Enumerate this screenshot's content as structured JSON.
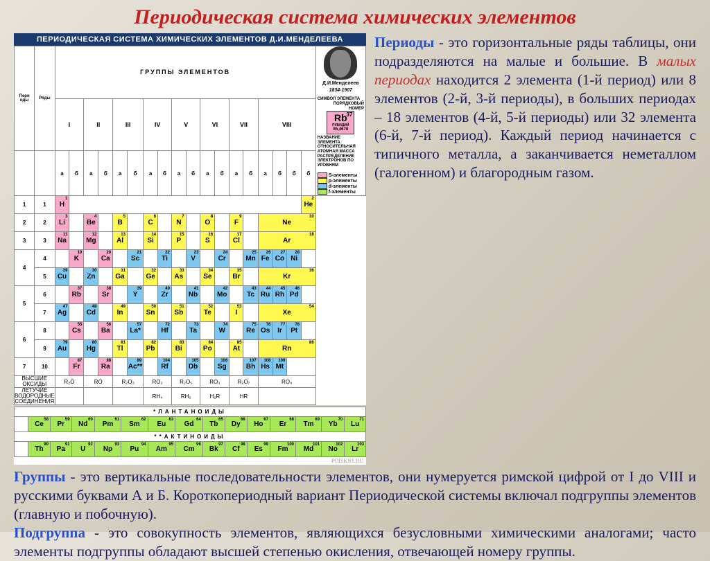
{
  "title": "Периодическая система химических элементов",
  "table": {
    "header": "ПЕРИОДИЧЕСКАЯ СИСТЕМА ХИМИЧЕСКИХ ЭЛЕМЕНТОВ Д.И.МЕНДЕЛЕЕВА",
    "groups_label": "ГРУППЫ ЭЛЕМЕНТОВ",
    "period_label": "Пери оды",
    "row_label": "Ряды",
    "groups": [
      "I",
      "II",
      "III",
      "IV",
      "V",
      "VI",
      "VII",
      "VIII"
    ],
    "subgroups": [
      "а",
      "б",
      "а",
      "б",
      "а",
      "б",
      "а",
      "б",
      "а",
      "б",
      "а",
      "б",
      "а",
      "б",
      "а",
      "б",
      "б",
      "б"
    ],
    "portrait": {
      "name": "Д.И.Менделеев",
      "years": "1834-1907"
    },
    "example": {
      "symbol": "Rb",
      "num": "37",
      "name": "РУБИДИЙ",
      "mass": "85,4678",
      "lbl_sym": "СИМВОЛ ЭЛЕМЕНТА",
      "lbl_num": "ПОРЯДКОВЫЙ НОМЕР",
      "lbl_name": "НАЗВАНИЕ ЭЛЕМЕНТА",
      "lbl_mass": "ОТНОСИТЕЛЬНАЯ АТОМНАЯ МАССА",
      "lbl_dist": "РАСПРЕДЕЛЕНИЕ ЭЛЕКТРОНОВ ПО УРОВНЯМ"
    },
    "legend": {
      "s": "S-элементы",
      "p": "p-элементы",
      "d": "d-элементы",
      "f": "f-элементы"
    },
    "rows": [
      {
        "period": "1",
        "row": "1",
        "cells": [
          {
            "s": "H",
            "n": "1",
            "c": "c-pink",
            "span": 1
          },
          {
            "c": "c-white",
            "span": 16
          },
          {
            "s": "He",
            "n": "2",
            "c": "c-yellow",
            "span": 1
          }
        ]
      },
      {
        "period": "2",
        "row": "2",
        "cells": [
          {
            "s": "Li",
            "n": "3",
            "c": "c-pink"
          },
          {
            "c": "c-white"
          },
          {
            "s": "Be",
            "n": "4",
            "c": "c-pink"
          },
          {
            "c": "c-white"
          },
          {
            "s": "B",
            "n": "5",
            "c": "c-yellow"
          },
          {
            "c": "c-white"
          },
          {
            "s": "C",
            "n": "6",
            "c": "c-yellow"
          },
          {
            "c": "c-white"
          },
          {
            "s": "N",
            "n": "7",
            "c": "c-yellow"
          },
          {
            "c": "c-white"
          },
          {
            "s": "O",
            "n": "8",
            "c": "c-yellow"
          },
          {
            "c": "c-white"
          },
          {
            "s": "F",
            "n": "9",
            "c": "c-yellow"
          },
          {
            "c": "c-white"
          },
          {
            "s": "Ne",
            "n": "10",
            "c": "c-yellow",
            "span": 4
          }
        ]
      },
      {
        "period": "3",
        "row": "3",
        "cells": [
          {
            "s": "Na",
            "n": "11",
            "c": "c-pink"
          },
          {
            "c": "c-white"
          },
          {
            "s": "Mg",
            "n": "12",
            "c": "c-pink"
          },
          {
            "c": "c-white"
          },
          {
            "s": "Al",
            "n": "13",
            "c": "c-yellow"
          },
          {
            "c": "c-white"
          },
          {
            "s": "Si",
            "n": "14",
            "c": "c-yellow"
          },
          {
            "c": "c-white"
          },
          {
            "s": "P",
            "n": "15",
            "c": "c-yellow"
          },
          {
            "c": "c-white"
          },
          {
            "s": "S",
            "n": "16",
            "c": "c-yellow"
          },
          {
            "c": "c-white"
          },
          {
            "s": "Cl",
            "n": "17",
            "c": "c-yellow"
          },
          {
            "c": "c-white"
          },
          {
            "s": "Ar",
            "n": "18",
            "c": "c-yellow",
            "span": 4
          }
        ]
      },
      {
        "period": "4",
        "row": "4",
        "cells": [
          {
            "c": "c-white"
          },
          {
            "s": "K",
            "n": "19",
            "c": "c-pink"
          },
          {
            "c": "c-white"
          },
          {
            "s": "Ca",
            "n": "20",
            "c": "c-pink"
          },
          {
            "c": "c-white"
          },
          {
            "s": "Sc",
            "n": "21",
            "c": "c-blue"
          },
          {
            "c": "c-white"
          },
          {
            "s": "Ti",
            "n": "22",
            "c": "c-blue"
          },
          {
            "c": "c-white"
          },
          {
            "s": "V",
            "n": "23",
            "c": "c-blue"
          },
          {
            "c": "c-white"
          },
          {
            "s": "Cr",
            "n": "24",
            "c": "c-blue"
          },
          {
            "c": "c-white"
          },
          {
            "s": "Mn",
            "n": "25",
            "c": "c-blue"
          },
          {
            "s": "Fe",
            "n": "26",
            "c": "c-blue"
          },
          {
            "s": "Co",
            "n": "27",
            "c": "c-blue"
          },
          {
            "s": "Ni",
            "n": "28",
            "c": "c-blue"
          },
          {
            "c": "c-white"
          }
        ]
      },
      {
        "period": "",
        "row": "5",
        "cells": [
          {
            "s": "Cu",
            "n": "29",
            "c": "c-blue"
          },
          {
            "c": "c-white"
          },
          {
            "s": "Zn",
            "n": "30",
            "c": "c-blue"
          },
          {
            "c": "c-white"
          },
          {
            "s": "Ga",
            "n": "31",
            "c": "c-yellow"
          },
          {
            "c": "c-white"
          },
          {
            "s": "Ge",
            "n": "32",
            "c": "c-yellow"
          },
          {
            "c": "c-white"
          },
          {
            "s": "As",
            "n": "33",
            "c": "c-yellow"
          },
          {
            "c": "c-white"
          },
          {
            "s": "Se",
            "n": "34",
            "c": "c-yellow"
          },
          {
            "c": "c-white"
          },
          {
            "s": "Br",
            "n": "35",
            "c": "c-yellow"
          },
          {
            "c": "c-white"
          },
          {
            "s": "Kr",
            "n": "36",
            "c": "c-yellow",
            "span": 4
          }
        ]
      },
      {
        "period": "5",
        "row": "6",
        "cells": [
          {
            "c": "c-white"
          },
          {
            "s": "Rb",
            "n": "37",
            "c": "c-pink"
          },
          {
            "c": "c-white"
          },
          {
            "s": "Sr",
            "n": "38",
            "c": "c-pink"
          },
          {
            "c": "c-white"
          },
          {
            "s": "Y",
            "n": "39",
            "c": "c-blue"
          },
          {
            "c": "c-white"
          },
          {
            "s": "Zr",
            "n": "40",
            "c": "c-blue"
          },
          {
            "c": "c-white"
          },
          {
            "s": "Nb",
            "n": "41",
            "c": "c-blue"
          },
          {
            "c": "c-white"
          },
          {
            "s": "Mo",
            "n": "42",
            "c": "c-blue"
          },
          {
            "c": "c-white"
          },
          {
            "s": "Tc",
            "n": "43",
            "c": "c-blue"
          },
          {
            "s": "Ru",
            "n": "44",
            "c": "c-blue"
          },
          {
            "s": "Rh",
            "n": "45",
            "c": "c-blue"
          },
          {
            "s": "Pd",
            "n": "46",
            "c": "c-blue"
          },
          {
            "c": "c-white"
          }
        ]
      },
      {
        "period": "",
        "row": "7",
        "cells": [
          {
            "s": "Ag",
            "n": "47",
            "c": "c-blue"
          },
          {
            "c": "c-white"
          },
          {
            "s": "Cd",
            "n": "48",
            "c": "c-blue"
          },
          {
            "c": "c-white"
          },
          {
            "s": "In",
            "n": "49",
            "c": "c-yellow"
          },
          {
            "c": "c-white"
          },
          {
            "s": "Sn",
            "n": "50",
            "c": "c-yellow"
          },
          {
            "c": "c-white"
          },
          {
            "s": "Sb",
            "n": "51",
            "c": "c-yellow"
          },
          {
            "c": "c-white"
          },
          {
            "s": "Te",
            "n": "52",
            "c": "c-yellow"
          },
          {
            "c": "c-white"
          },
          {
            "s": "I",
            "n": "53",
            "c": "c-yellow"
          },
          {
            "c": "c-white"
          },
          {
            "s": "Xe",
            "n": "54",
            "c": "c-yellow",
            "span": 4
          }
        ]
      },
      {
        "period": "6",
        "row": "8",
        "cells": [
          {
            "c": "c-white"
          },
          {
            "s": "Cs",
            "n": "55",
            "c": "c-pink"
          },
          {
            "c": "c-white"
          },
          {
            "s": "Ba",
            "n": "56",
            "c": "c-pink"
          },
          {
            "c": "c-white"
          },
          {
            "s": "La*",
            "n": "57",
            "c": "c-blue"
          },
          {
            "c": "c-white"
          },
          {
            "s": "Hf",
            "n": "72",
            "c": "c-blue"
          },
          {
            "c": "c-white"
          },
          {
            "s": "Ta",
            "n": "73",
            "c": "c-blue"
          },
          {
            "c": "c-white"
          },
          {
            "s": "W",
            "n": "74",
            "c": "c-blue"
          },
          {
            "c": "c-white"
          },
          {
            "s": "Re",
            "n": "75",
            "c": "c-blue"
          },
          {
            "s": "Os",
            "n": "76",
            "c": "c-blue"
          },
          {
            "s": "Ir",
            "n": "77",
            "c": "c-blue"
          },
          {
            "s": "Pt",
            "n": "78",
            "c": "c-blue"
          },
          {
            "c": "c-white"
          }
        ]
      },
      {
        "period": "",
        "row": "9",
        "cells": [
          {
            "s": "Au",
            "n": "79",
            "c": "c-blue"
          },
          {
            "c": "c-white"
          },
          {
            "s": "Hg",
            "n": "80",
            "c": "c-blue"
          },
          {
            "c": "c-white"
          },
          {
            "s": "Tl",
            "n": "81",
            "c": "c-yellow"
          },
          {
            "c": "c-white"
          },
          {
            "s": "Pb",
            "n": "82",
            "c": "c-yellow"
          },
          {
            "c": "c-white"
          },
          {
            "s": "Bi",
            "n": "83",
            "c": "c-yellow"
          },
          {
            "c": "c-white"
          },
          {
            "s": "Po",
            "n": "84",
            "c": "c-yellow"
          },
          {
            "c": "c-white"
          },
          {
            "s": "At",
            "n": "85",
            "c": "c-yellow"
          },
          {
            "c": "c-white"
          },
          {
            "s": "Rn",
            "n": "86",
            "c": "c-yellow",
            "span": 4
          }
        ]
      },
      {
        "period": "7",
        "row": "10",
        "cells": [
          {
            "c": "c-white"
          },
          {
            "s": "Fr",
            "n": "87",
            "c": "c-pink"
          },
          {
            "c": "c-white"
          },
          {
            "s": "Ra",
            "n": "88",
            "c": "c-pink"
          },
          {
            "c": "c-white"
          },
          {
            "s": "Ac**",
            "n": "89",
            "c": "c-blue"
          },
          {
            "c": "c-white"
          },
          {
            "s": "Rf",
            "n": "104",
            "c": "c-blue"
          },
          {
            "c": "c-white"
          },
          {
            "s": "Db",
            "n": "105",
            "c": "c-blue"
          },
          {
            "c": "c-white"
          },
          {
            "s": "Sg",
            "n": "106",
            "c": "c-blue"
          },
          {
            "c": "c-white"
          },
          {
            "s": "Bh",
            "n": "107",
            "c": "c-blue"
          },
          {
            "s": "Hs",
            "n": "108",
            "c": "c-blue"
          },
          {
            "s": "Mt",
            "n": "109",
            "c": "c-blue"
          },
          {
            "c": "c-white",
            "span": 2
          }
        ]
      }
    ],
    "oxides": {
      "label": "ВЫСШИЕ ОКСИДЫ",
      "vals": [
        "R₂O",
        "RO",
        "R₂O₃",
        "RO₂",
        "R₂O₅",
        "RO₃",
        "R₂O₇",
        "RO₄"
      ]
    },
    "hydrides": {
      "label": "ЛЕТУЧИЕ ВОДОРОДНЫЕ СОЕДИНЕНИЯ",
      "vals": [
        "",
        "",
        "",
        "RH₄",
        "RH₃",
        "H₂R",
        "HR",
        ""
      ]
    },
    "lanthanoids": {
      "label": "*ЛАНТАНОИДЫ",
      "elements": [
        {
          "s": "Ce",
          "n": "58"
        },
        {
          "s": "Pr",
          "n": "59"
        },
        {
          "s": "Nd",
          "n": "60"
        },
        {
          "s": "Pm",
          "n": "61"
        },
        {
          "s": "Sm",
          "n": "62"
        },
        {
          "s": "Eu",
          "n": "63"
        },
        {
          "s": "Gd",
          "n": "64"
        },
        {
          "s": "Tb",
          "n": "65"
        },
        {
          "s": "Dy",
          "n": "66"
        },
        {
          "s": "Ho",
          "n": "67"
        },
        {
          "s": "Er",
          "n": "68"
        },
        {
          "s": "Tm",
          "n": "69"
        },
        {
          "s": "Yb",
          "n": "70"
        },
        {
          "s": "Lu",
          "n": "71"
        }
      ]
    },
    "actinoids": {
      "label": "**АКТИНОИДЫ",
      "elements": [
        {
          "s": "Th",
          "n": "90"
        },
        {
          "s": "Pa",
          "n": "91"
        },
        {
          "s": "U",
          "n": "92"
        },
        {
          "s": "Np",
          "n": "93"
        },
        {
          "s": "Pu",
          "n": "94"
        },
        {
          "s": "Am",
          "n": "95"
        },
        {
          "s": "Cm",
          "n": "96"
        },
        {
          "s": "Bk",
          "n": "97"
        },
        {
          "s": "Cf",
          "n": "98"
        },
        {
          "s": "Es",
          "n": "99"
        },
        {
          "s": "Fm",
          "n": "100"
        },
        {
          "s": "Md",
          "n": "101"
        },
        {
          "s": "No",
          "n": "102"
        },
        {
          "s": "Lr",
          "n": "103"
        }
      ]
    },
    "watermark": "POISKN1.RU"
  },
  "text": {
    "periods_label": "Периоды",
    "periods_body1": " - это горизонтальные ряды таблицы, они подразделяются на малые и большие. В ",
    "periods_red": "малых периодах",
    "periods_body2": " находится 2 элемента (1-й период) или 8 элементов (2-й, 3-й периоды), в больших периодах – 18 элементов (4-й, 5-й периоды) или 32 элемента (6-й, 7-й период). Каждый период начинается с типичного металла, а заканчивается неметаллом (галогенном) и благородным газом.",
    "groups_label": "Группы",
    "groups_body": " - это вертикальные последовательности элементов, они нумеруется римской цифрой от I до VIII и русскими буквами А и Б. Короткопериодный вариант Периодической системы включал подгруппы элементов (главную и побочную).",
    "subgroup_label": "Подгруппа",
    "subgroup_body": " - это совокупность элементов, являющихся безусловными химическими аналогами; часто элементы подгруппы обладают высшей степенью окисления, отвечающей номеру группы."
  },
  "colors": {
    "title": "#c41e1e",
    "text": "#1a1a5e",
    "highlight_blue": "#2850c8",
    "highlight_red": "#c03030",
    "table_header_bg": "#1a3a6e",
    "s_element": "#f8a8c8",
    "p_element": "#fef850",
    "d_element": "#7ec8f0",
    "f_element": "#a8e858"
  }
}
